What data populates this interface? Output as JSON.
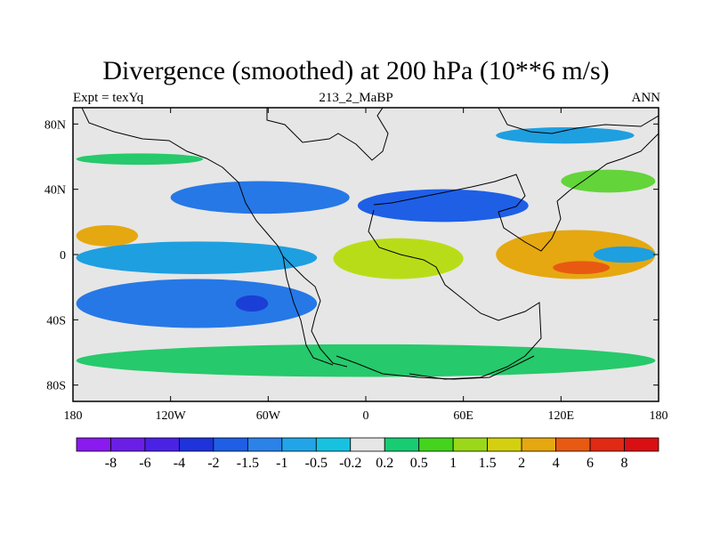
{
  "header": {
    "title": "Divergence (smoothed) at 200 hPa (10**6 m/s)",
    "left_label": "Expt = texYq",
    "center_label": "213_2_MaBP",
    "right_label": "ANN"
  },
  "map": {
    "projection": "cylindrical-equidistant",
    "lon_range": [
      -180,
      180
    ],
    "lat_range": [
      -90,
      90
    ],
    "background_color": "#e6e6e6",
    "x_ticks": [
      {
        "lon": -180,
        "label": "180"
      },
      {
        "lon": -120,
        "label": "120W"
      },
      {
        "lon": -60,
        "label": "60W"
      },
      {
        "lon": 0,
        "label": "0"
      },
      {
        "lon": 60,
        "label": "60E"
      },
      {
        "lon": 120,
        "label": "120E"
      },
      {
        "lon": 180,
        "label": "180"
      }
    ],
    "y_ticks": [
      {
        "lat": 80,
        "label": "80N"
      },
      {
        "lat": 40,
        "label": "40N"
      },
      {
        "lat": 0,
        "label": "0"
      },
      {
        "lat": -40,
        "label": "40S"
      },
      {
        "lat": -80,
        "label": "80S"
      }
    ],
    "features": [
      {
        "name": "nh-highlat-band-green",
        "lon": [
          -178,
          -100
        ],
        "lat": [
          55,
          62
        ],
        "color": "#26c96b"
      },
      {
        "name": "nh-highlat-band-blue",
        "lon": [
          80,
          165
        ],
        "lat": [
          68,
          78
        ],
        "color": "#1e9fe0"
      },
      {
        "name": "pacific-30n-green",
        "lon": [
          120,
          178
        ],
        "lat": [
          38,
          52
        ],
        "color": "#63d43a"
      },
      {
        "name": "atlantic-30n-blue",
        "lon": [
          -120,
          -10
        ],
        "lat": [
          25,
          45
        ],
        "color": "#2678e6"
      },
      {
        "name": "eurasia-30n-blue",
        "lon": [
          -5,
          100
        ],
        "lat": [
          20,
          40
        ],
        "color": "#1e5fe6"
      },
      {
        "name": "equator-pacific-orange",
        "lon": [
          -178,
          -140
        ],
        "lat": [
          5,
          18
        ],
        "color": "#e6a810"
      },
      {
        "name": "tropic-band-blue-west",
        "lon": [
          -178,
          -30
        ],
        "lat": [
          -12,
          8
        ],
        "color": "#1e9fe0"
      },
      {
        "name": "africa-yellow",
        "lon": [
          -20,
          60
        ],
        "lat": [
          -15,
          10
        ],
        "color": "#b8dd18"
      },
      {
        "name": "indopacific-orange",
        "lon": [
          80,
          178
        ],
        "lat": [
          -15,
          15
        ],
        "color": "#e6a810"
      },
      {
        "name": "indopacific-red",
        "lon": [
          115,
          150
        ],
        "lat": [
          -12,
          -4
        ],
        "color": "#e85a12"
      },
      {
        "name": "sh-20s-blue",
        "lon": [
          -178,
          -30
        ],
        "lat": [
          -45,
          -15
        ],
        "color": "#2678e6"
      },
      {
        "name": "sh-deep-blue",
        "lon": [
          -80,
          -60
        ],
        "lat": [
          -35,
          -25
        ],
        "color": "#1b3fd6"
      },
      {
        "name": "sh-40s-green",
        "lon": [
          -178,
          178
        ],
        "lat": [
          -75,
          -55
        ],
        "color": "#26c96b"
      },
      {
        "name": "pacific-east-blue",
        "lon": [
          140,
          178
        ],
        "lat": [
          -5,
          5
        ],
        "color": "#1e9fe0"
      }
    ]
  },
  "colorbar": {
    "labels": [
      "-8",
      "-6",
      "-4",
      "-2",
      "-1.5",
      "-1",
      "-0.5",
      "-0.2",
      "0.2",
      "0.5",
      "1",
      "1.5",
      "2",
      "4",
      "6",
      "8"
    ],
    "colors": [
      "#8a1aef",
      "#6a1ee6",
      "#4a22e6",
      "#1e33d9",
      "#1f5fe6",
      "#2b82e8",
      "#22a5e8",
      "#17c2e0",
      "#e6e6e6",
      "#18cc72",
      "#44d41e",
      "#9bd81a",
      "#d4d010",
      "#e6a810",
      "#e85a12",
      "#e02a14",
      "#d90f14"
    ]
  }
}
